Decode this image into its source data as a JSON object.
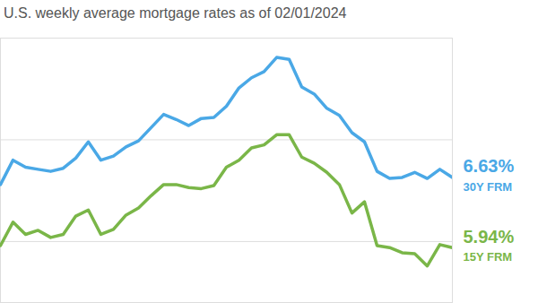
{
  "chart_data": {
    "type": "line",
    "title": "U.S. weekly average mortgage rates as of 02/01/2024",
    "categories": [
      null,
      null,
      null,
      null,
      null,
      null,
      null,
      null,
      null,
      null,
      null,
      null,
      null,
      null,
      null,
      null,
      null,
      null,
      null,
      null,
      null,
      null,
      null,
      null,
      null,
      null,
      null,
      null,
      null,
      null,
      null,
      null,
      null,
      null,
      null,
      null,
      null
    ],
    "series": [
      {
        "name": "30Y FRM",
        "color": "#4aa8e6",
        "values": [
          6.56,
          6.8,
          6.73,
          6.71,
          6.69,
          6.72,
          6.82,
          6.98,
          6.8,
          6.84,
          6.93,
          6.99,
          7.12,
          7.25,
          7.2,
          7.14,
          7.21,
          7.22,
          7.33,
          7.51,
          7.61,
          7.67,
          7.81,
          7.79,
          7.52,
          7.45,
          7.31,
          7.24,
          7.07,
          6.98,
          6.69,
          6.62,
          6.63,
          6.68,
          6.62,
          6.71,
          6.63
        ],
        "value_labels": [
          null,
          null,
          null,
          null,
          null,
          null,
          null,
          null,
          null,
          null,
          null,
          null,
          null,
          null,
          null,
          null,
          null,
          null,
          null,
          null,
          null,
          null,
          null,
          null,
          null,
          null,
          null,
          null,
          null,
          null,
          null,
          null,
          null,
          null,
          null,
          null,
          "6.63%"
        ]
      },
      {
        "name": "15Y FRM",
        "color": "#7ab648",
        "values": [
          5.96,
          6.19,
          6.07,
          6.11,
          6.04,
          6.07,
          6.25,
          6.31,
          6.07,
          6.12,
          6.26,
          6.33,
          6.45,
          6.56,
          6.56,
          6.53,
          6.52,
          6.55,
          6.73,
          6.8,
          6.92,
          6.95,
          7.05,
          7.05,
          6.83,
          6.77,
          6.68,
          6.56,
          6.28,
          6.39,
          5.96,
          5.94,
          5.89,
          5.88,
          5.76,
          5.97,
          5.94
        ],
        "value_labels": [
          null,
          null,
          null,
          null,
          null,
          null,
          null,
          null,
          null,
          null,
          null,
          null,
          null,
          null,
          null,
          null,
          null,
          null,
          null,
          null,
          null,
          null,
          null,
          null,
          null,
          null,
          null,
          null,
          null,
          null,
          null,
          null,
          null,
          null,
          null,
          null,
          "5.94%"
        ]
      }
    ],
    "ylim": [
      5.4,
      8
    ],
    "yticks": [
      6,
      7,
      8
    ],
    "grid": true,
    "tick_labels": false,
    "data_labels": true
  }
}
